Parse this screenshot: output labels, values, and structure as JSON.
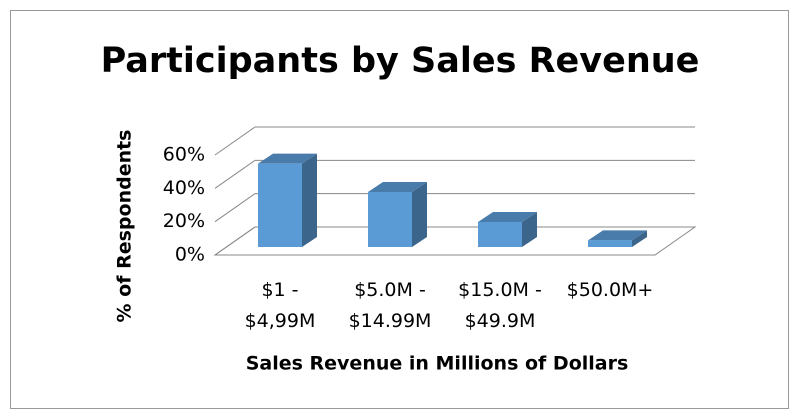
{
  "chart_data": {
    "type": "bar3d",
    "title": "Participants by Sales Revenue",
    "x_label": "Sales Revenue in Millions of Dollars",
    "y_label": "% of Respondents",
    "categories": [
      "$1 - $4,99M",
      "$5.0M - $14.99M",
      "$15.0M - $49.9M",
      "$50.0M+"
    ],
    "values": [
      50,
      33,
      15,
      4
    ],
    "color": "#5b9bd5",
    "ylim": [
      0,
      60
    ],
    "yticks": [
      {
        "value": 0,
        "label": "0%"
      },
      {
        "value": 20,
        "label": "20%"
      },
      {
        "value": 40,
        "label": "40%"
      },
      {
        "value": 60,
        "label": "60%"
      }
    ],
    "grid": true
  }
}
